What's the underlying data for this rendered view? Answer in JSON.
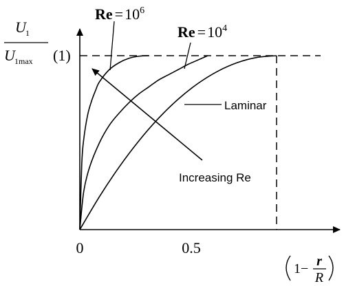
{
  "chart_data": {
    "type": "line",
    "xlim": [
      0,
      1
    ],
    "ylim": [
      0,
      1
    ],
    "y_label": {
      "numerator_symbol": "U",
      "numerator_subscript": "1",
      "denominator_symbol": "U",
      "denominator_subscript": "1max"
    },
    "y_reference_label": "(1)",
    "x_tick_labels": [
      "0",
      "0.5"
    ],
    "x_label": {
      "lead": "1−",
      "numerator": "r",
      "denominator": "R"
    },
    "series": [
      {
        "name": "Re = 10^6",
        "label_text": "Re",
        "label_equals": "=",
        "label_base": "10",
        "label_exponent": "6",
        "x": [
          0,
          0.01,
          0.02,
          0.04,
          0.06,
          0.08,
          0.1,
          0.15,
          0.2,
          0.25,
          0.3,
          0.35
        ],
        "y": [
          0,
          0.38,
          0.52,
          0.66,
          0.74,
          0.8,
          0.85,
          0.92,
          0.96,
          0.985,
          0.997,
          1.0
        ]
      },
      {
        "name": "Re = 10^4",
        "label_text": "Re",
        "label_equals": "=",
        "label_base": "10",
        "label_exponent": "4",
        "x": [
          0,
          0.02,
          0.05,
          0.1,
          0.15,
          0.2,
          0.25,
          0.3,
          0.35,
          0.4,
          0.45,
          0.5,
          0.55,
          0.6,
          0.65
        ],
        "y": [
          0,
          0.22,
          0.36,
          0.5,
          0.6,
          0.67,
          0.73,
          0.78,
          0.82,
          0.86,
          0.89,
          0.92,
          0.95,
          0.975,
          1.0
        ]
      },
      {
        "name": "Laminar",
        "label_text": "Laminar",
        "x": [
          0,
          0.1,
          0.2,
          0.3,
          0.4,
          0.5,
          0.6,
          0.7,
          0.8,
          0.9,
          1.0
        ],
        "y": [
          0,
          0.19,
          0.36,
          0.51,
          0.64,
          0.75,
          0.84,
          0.91,
          0.96,
          0.99,
          1.0
        ]
      }
    ],
    "annotation": "Increasing Re",
    "reference_lines": {
      "horizontal_at_y": 1,
      "vertical_at_x": 1,
      "style": "dashed"
    },
    "grid": false,
    "colors": {
      "ink": "#000000",
      "background": "#ffffff"
    }
  }
}
